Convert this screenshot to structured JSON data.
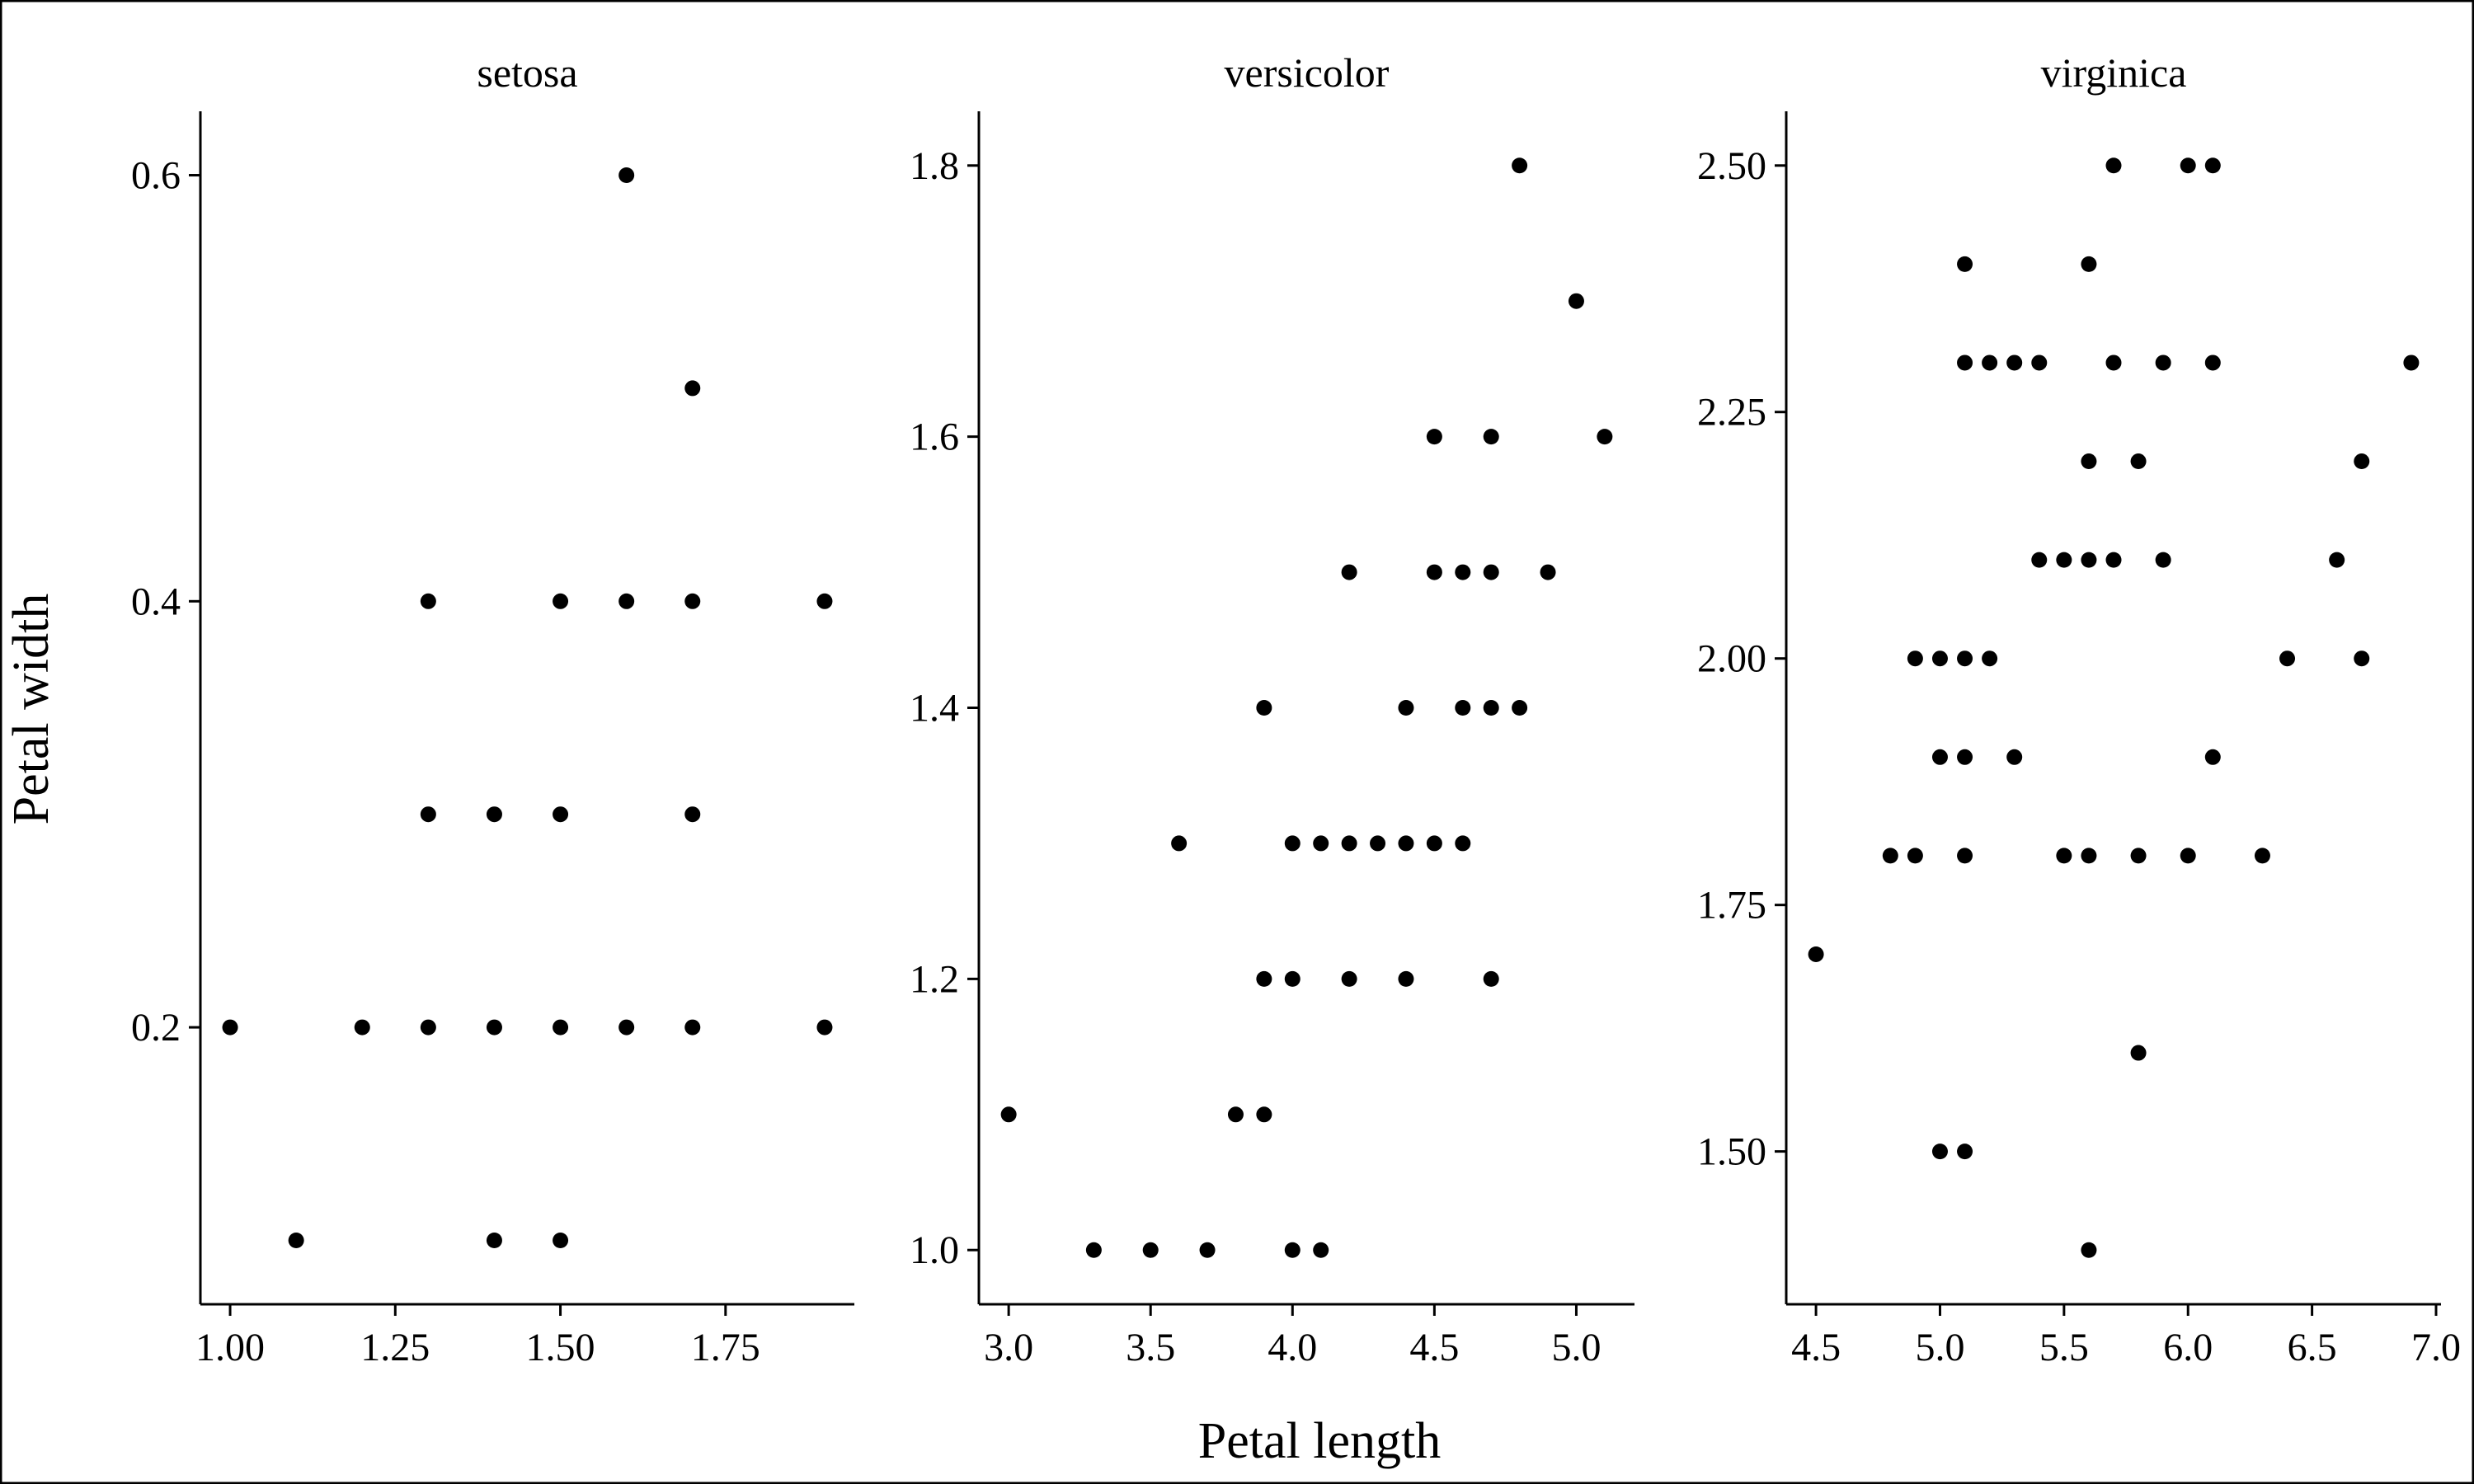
{
  "chart_data": {
    "type": "scatter",
    "xlabel": "Petal length",
    "ylabel": "Petal width",
    "grid": false,
    "point_color": "#000000",
    "panels": [
      {
        "title": "setosa",
        "xlim": [
          0.955,
          1.945
        ],
        "ylim": [
          0.07,
          0.63
        ],
        "xticks": [
          "1.00",
          "1.25",
          "1.50",
          "1.75"
        ],
        "yticks": [
          "0.2",
          "0.4",
          "0.6"
        ],
        "points": [
          {
            "x": 1.6,
            "y": 0.6
          },
          {
            "x": 1.7,
            "y": 0.5
          },
          {
            "x": 1.3,
            "y": 0.4
          },
          {
            "x": 1.5,
            "y": 0.4
          },
          {
            "x": 1.6,
            "y": 0.4
          },
          {
            "x": 1.7,
            "y": 0.4
          },
          {
            "x": 1.9,
            "y": 0.4
          },
          {
            "x": 1.3,
            "y": 0.3
          },
          {
            "x": 1.4,
            "y": 0.3
          },
          {
            "x": 1.5,
            "y": 0.3
          },
          {
            "x": 1.7,
            "y": 0.3
          },
          {
            "x": 1.0,
            "y": 0.2
          },
          {
            "x": 1.2,
            "y": 0.2
          },
          {
            "x": 1.3,
            "y": 0.2
          },
          {
            "x": 1.4,
            "y": 0.2
          },
          {
            "x": 1.5,
            "y": 0.2
          },
          {
            "x": 1.6,
            "y": 0.2
          },
          {
            "x": 1.7,
            "y": 0.2
          },
          {
            "x": 1.9,
            "y": 0.2
          },
          {
            "x": 1.1,
            "y": 0.1
          },
          {
            "x": 1.4,
            "y": 0.1
          },
          {
            "x": 1.5,
            "y": 0.1
          }
        ]
      },
      {
        "title": "versicolor",
        "xlim": [
          2.895,
          5.205
        ],
        "ylim": [
          0.96,
          1.84
        ],
        "xticks": [
          "3.0",
          "3.5",
          "4.0",
          "4.5",
          "5.0"
        ],
        "yticks": [
          "1.0",
          "1.2",
          "1.4",
          "1.6",
          "1.8"
        ],
        "points": [
          {
            "x": 4.8,
            "y": 1.8
          },
          {
            "x": 5.0,
            "y": 1.7
          },
          {
            "x": 4.5,
            "y": 1.6
          },
          {
            "x": 4.7,
            "y": 1.6
          },
          {
            "x": 5.1,
            "y": 1.6
          },
          {
            "x": 4.2,
            "y": 1.5
          },
          {
            "x": 4.5,
            "y": 1.5
          },
          {
            "x": 4.6,
            "y": 1.5
          },
          {
            "x": 4.7,
            "y": 1.5
          },
          {
            "x": 4.9,
            "y": 1.5
          },
          {
            "x": 3.9,
            "y": 1.4
          },
          {
            "x": 4.4,
            "y": 1.4
          },
          {
            "x": 4.6,
            "y": 1.4
          },
          {
            "x": 4.7,
            "y": 1.4
          },
          {
            "x": 4.8,
            "y": 1.4
          },
          {
            "x": 3.6,
            "y": 1.3
          },
          {
            "x": 4.0,
            "y": 1.3
          },
          {
            "x": 4.1,
            "y": 1.3
          },
          {
            "x": 4.2,
            "y": 1.3
          },
          {
            "x": 4.3,
            "y": 1.3
          },
          {
            "x": 4.4,
            "y": 1.3
          },
          {
            "x": 4.5,
            "y": 1.3
          },
          {
            "x": 4.6,
            "y": 1.3
          },
          {
            "x": 3.9,
            "y": 1.2
          },
          {
            "x": 4.0,
            "y": 1.2
          },
          {
            "x": 4.2,
            "y": 1.2
          },
          {
            "x": 4.4,
            "y": 1.2
          },
          {
            "x": 4.7,
            "y": 1.2
          },
          {
            "x": 3.0,
            "y": 1.1
          },
          {
            "x": 3.8,
            "y": 1.1
          },
          {
            "x": 3.9,
            "y": 1.1
          },
          {
            "x": 3.3,
            "y": 1.0
          },
          {
            "x": 3.5,
            "y": 1.0
          },
          {
            "x": 3.7,
            "y": 1.0
          },
          {
            "x": 4.0,
            "y": 1.0
          },
          {
            "x": 4.1,
            "y": 1.0
          }
        ]
      },
      {
        "title": "virginica",
        "xlim": [
          4.38,
          7.02
        ],
        "ylim": [
          1.345,
          2.555
        ],
        "xticks": [
          "4.5",
          "5.0",
          "5.5",
          "6.0",
          "6.5",
          "7.0"
        ],
        "yticks": [
          "1.50",
          "1.75",
          "2.00",
          "2.25",
          "2.50"
        ],
        "points": [
          {
            "x": 5.7,
            "y": 2.5
          },
          {
            "x": 6.0,
            "y": 2.5
          },
          {
            "x": 6.1,
            "y": 2.5
          },
          {
            "x": 5.1,
            "y": 2.4
          },
          {
            "x": 5.6,
            "y": 2.4
          },
          {
            "x": 5.1,
            "y": 2.3
          },
          {
            "x": 5.2,
            "y": 2.3
          },
          {
            "x": 5.3,
            "y": 2.3
          },
          {
            "x": 5.4,
            "y": 2.3
          },
          {
            "x": 5.7,
            "y": 2.3
          },
          {
            "x": 5.9,
            "y": 2.3
          },
          {
            "x": 6.1,
            "y": 2.3
          },
          {
            "x": 6.9,
            "y": 2.3
          },
          {
            "x": 5.6,
            "y": 2.2
          },
          {
            "x": 5.8,
            "y": 2.2
          },
          {
            "x": 6.7,
            "y": 2.2
          },
          {
            "x": 5.4,
            "y": 2.1
          },
          {
            "x": 5.5,
            "y": 2.1
          },
          {
            "x": 5.6,
            "y": 2.1
          },
          {
            "x": 5.7,
            "y": 2.1
          },
          {
            "x": 5.9,
            "y": 2.1
          },
          {
            "x": 6.6,
            "y": 2.1
          },
          {
            "x": 4.9,
            "y": 2.0
          },
          {
            "x": 5.0,
            "y": 2.0
          },
          {
            "x": 5.1,
            "y": 2.0
          },
          {
            "x": 5.2,
            "y": 2.0
          },
          {
            "x": 6.4,
            "y": 2.0
          },
          {
            "x": 6.7,
            "y": 2.0
          },
          {
            "x": 5.0,
            "y": 1.9
          },
          {
            "x": 5.1,
            "y": 1.9
          },
          {
            "x": 5.3,
            "y": 1.9
          },
          {
            "x": 6.1,
            "y": 1.9
          },
          {
            "x": 4.8,
            "y": 1.8
          },
          {
            "x": 4.9,
            "y": 1.8
          },
          {
            "x": 5.1,
            "y": 1.8
          },
          {
            "x": 5.5,
            "y": 1.8
          },
          {
            "x": 5.6,
            "y": 1.8
          },
          {
            "x": 5.8,
            "y": 1.8
          },
          {
            "x": 6.0,
            "y": 1.8
          },
          {
            "x": 6.3,
            "y": 1.8
          },
          {
            "x": 4.5,
            "y": 1.7
          },
          {
            "x": 5.8,
            "y": 1.6
          },
          {
            "x": 5.0,
            "y": 1.5
          },
          {
            "x": 5.1,
            "y": 1.5
          },
          {
            "x": 5.6,
            "y": 1.4
          }
        ]
      }
    ]
  }
}
